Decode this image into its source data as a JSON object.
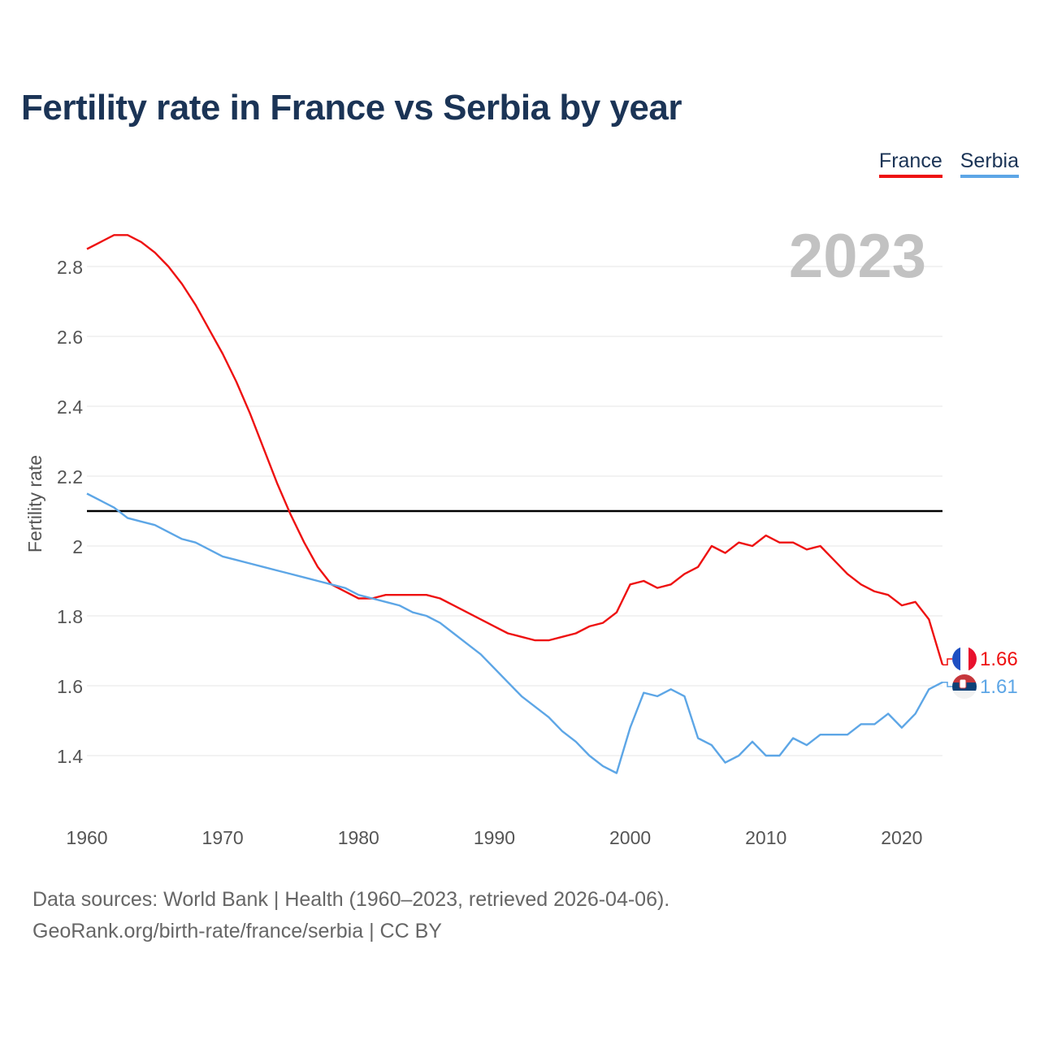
{
  "title": "Fertility rate in France vs Serbia by year",
  "legend": {
    "france": "France",
    "serbia": "Serbia"
  },
  "source": {
    "line1": "Data sources: World Bank | Health (1960–2023, retrieved 2026-04-06).",
    "line2": "GeoRank.org/birth-rate/france/serbia | CC BY"
  },
  "chart_data": {
    "type": "line",
    "title": "Fertility rate in France vs Serbia by year",
    "ylabel": "Fertility rate",
    "xlabel": "",
    "year_watermark": "2023",
    "xlim": [
      1960,
      2023
    ],
    "ylim": [
      1.2,
      2.9
    ],
    "yticks": [
      1.4,
      1.6,
      1.8,
      2,
      2.2,
      2.4,
      2.6,
      2.8
    ],
    "ytick_labels": [
      "1.4",
      "1.6",
      "1.8",
      "2",
      "2.2",
      "2.4",
      "2.6",
      "2.8"
    ],
    "xticks": [
      1960,
      1970,
      1980,
      1990,
      2000,
      2010,
      2020
    ],
    "xtick_labels": [
      "1960",
      "1970",
      "1980",
      "1990",
      "2000",
      "2010",
      "2020"
    ],
    "reference_line": 2.1,
    "grid": true,
    "colors": {
      "France": "#ee1111",
      "Serbia": "#5da6e6",
      "reference": "#000000"
    },
    "x": [
      1960,
      1961,
      1962,
      1963,
      1964,
      1965,
      1966,
      1967,
      1968,
      1969,
      1970,
      1971,
      1972,
      1973,
      1974,
      1975,
      1976,
      1977,
      1978,
      1979,
      1980,
      1981,
      1982,
      1983,
      1984,
      1985,
      1986,
      1987,
      1988,
      1989,
      1990,
      1991,
      1992,
      1993,
      1994,
      1995,
      1996,
      1997,
      1998,
      1999,
      2000,
      2001,
      2002,
      2003,
      2004,
      2005,
      2006,
      2007,
      2008,
      2009,
      2010,
      2011,
      2012,
      2013,
      2014,
      2015,
      2016,
      2017,
      2018,
      2019,
      2020,
      2021,
      2022,
      2023
    ],
    "series": [
      {
        "name": "France",
        "end_label": "1.66",
        "values": [
          2.85,
          2.87,
          2.89,
          2.89,
          2.87,
          2.84,
          2.8,
          2.75,
          2.69,
          2.62,
          2.55,
          2.47,
          2.38,
          2.28,
          2.18,
          2.09,
          2.01,
          1.94,
          1.89,
          1.87,
          1.85,
          1.85,
          1.86,
          1.86,
          1.86,
          1.86,
          1.85,
          1.83,
          1.81,
          1.79,
          1.77,
          1.75,
          1.74,
          1.73,
          1.73,
          1.74,
          1.75,
          1.77,
          1.78,
          1.81,
          1.89,
          1.9,
          1.88,
          1.89,
          1.92,
          1.94,
          2.0,
          1.98,
          2.01,
          2.0,
          2.03,
          2.01,
          2.01,
          1.99,
          2.0,
          1.96,
          1.92,
          1.89,
          1.87,
          1.86,
          1.83,
          1.84,
          1.79,
          1.66
        ]
      },
      {
        "name": "Serbia",
        "end_label": "1.61",
        "values": [
          2.15,
          2.13,
          2.11,
          2.08,
          2.07,
          2.06,
          2.04,
          2.02,
          2.01,
          1.99,
          1.97,
          1.96,
          1.95,
          1.94,
          1.93,
          1.92,
          1.91,
          1.9,
          1.89,
          1.88,
          1.86,
          1.85,
          1.84,
          1.83,
          1.81,
          1.8,
          1.78,
          1.75,
          1.72,
          1.69,
          1.65,
          1.61,
          1.57,
          1.54,
          1.51,
          1.47,
          1.44,
          1.4,
          1.37,
          1.35,
          1.48,
          1.58,
          1.57,
          1.59,
          1.57,
          1.45,
          1.43,
          1.38,
          1.4,
          1.44,
          1.4,
          1.4,
          1.45,
          1.43,
          1.46,
          1.46,
          1.46,
          1.49,
          1.49,
          1.52,
          1.48,
          1.52,
          1.59,
          1.61
        ]
      }
    ]
  }
}
